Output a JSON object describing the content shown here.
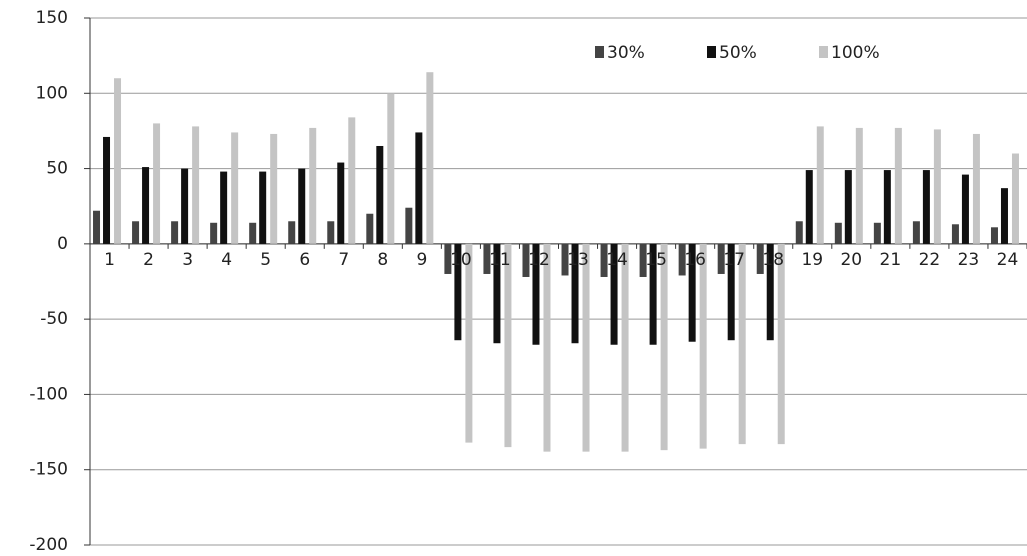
{
  "chart_data": {
    "type": "bar",
    "categories": [
      "1",
      "2",
      "3",
      "4",
      "5",
      "6",
      "7",
      "8",
      "9",
      "10",
      "11",
      "12",
      "13",
      "14",
      "15",
      "16",
      "17",
      "18",
      "19",
      "20",
      "21",
      "22",
      "23",
      "24"
    ],
    "series": [
      {
        "name": "30%",
        "color": "#444444",
        "values": [
          22,
          15,
          15,
          14,
          14,
          15,
          15,
          20,
          24,
          -20,
          -20,
          -22,
          -21,
          -22,
          -22,
          -21,
          -20,
          -20,
          15,
          14,
          14,
          15,
          13,
          11
        ]
      },
      {
        "name": "50%",
        "color": "#111111",
        "values": [
          71,
          51,
          50,
          48,
          48,
          50,
          54,
          65,
          74,
          -64,
          -66,
          -67,
          -66,
          -67,
          -67,
          -65,
          -64,
          -64,
          49,
          49,
          49,
          49,
          46,
          37
        ]
      },
      {
        "name": "100%",
        "color": "#c4c4c4",
        "values": [
          110,
          80,
          78,
          74,
          73,
          77,
          84,
          100,
          114,
          -132,
          -135,
          -138,
          -138,
          -138,
          -137,
          -136,
          -133,
          -133,
          78,
          77,
          77,
          76,
          73,
          60
        ]
      }
    ],
    "ylim": [
      -200,
      150
    ],
    "yticks": [
      -200,
      -150,
      -100,
      -50,
      0,
      50,
      100,
      150
    ],
    "grid": true,
    "legend": "top-right"
  }
}
